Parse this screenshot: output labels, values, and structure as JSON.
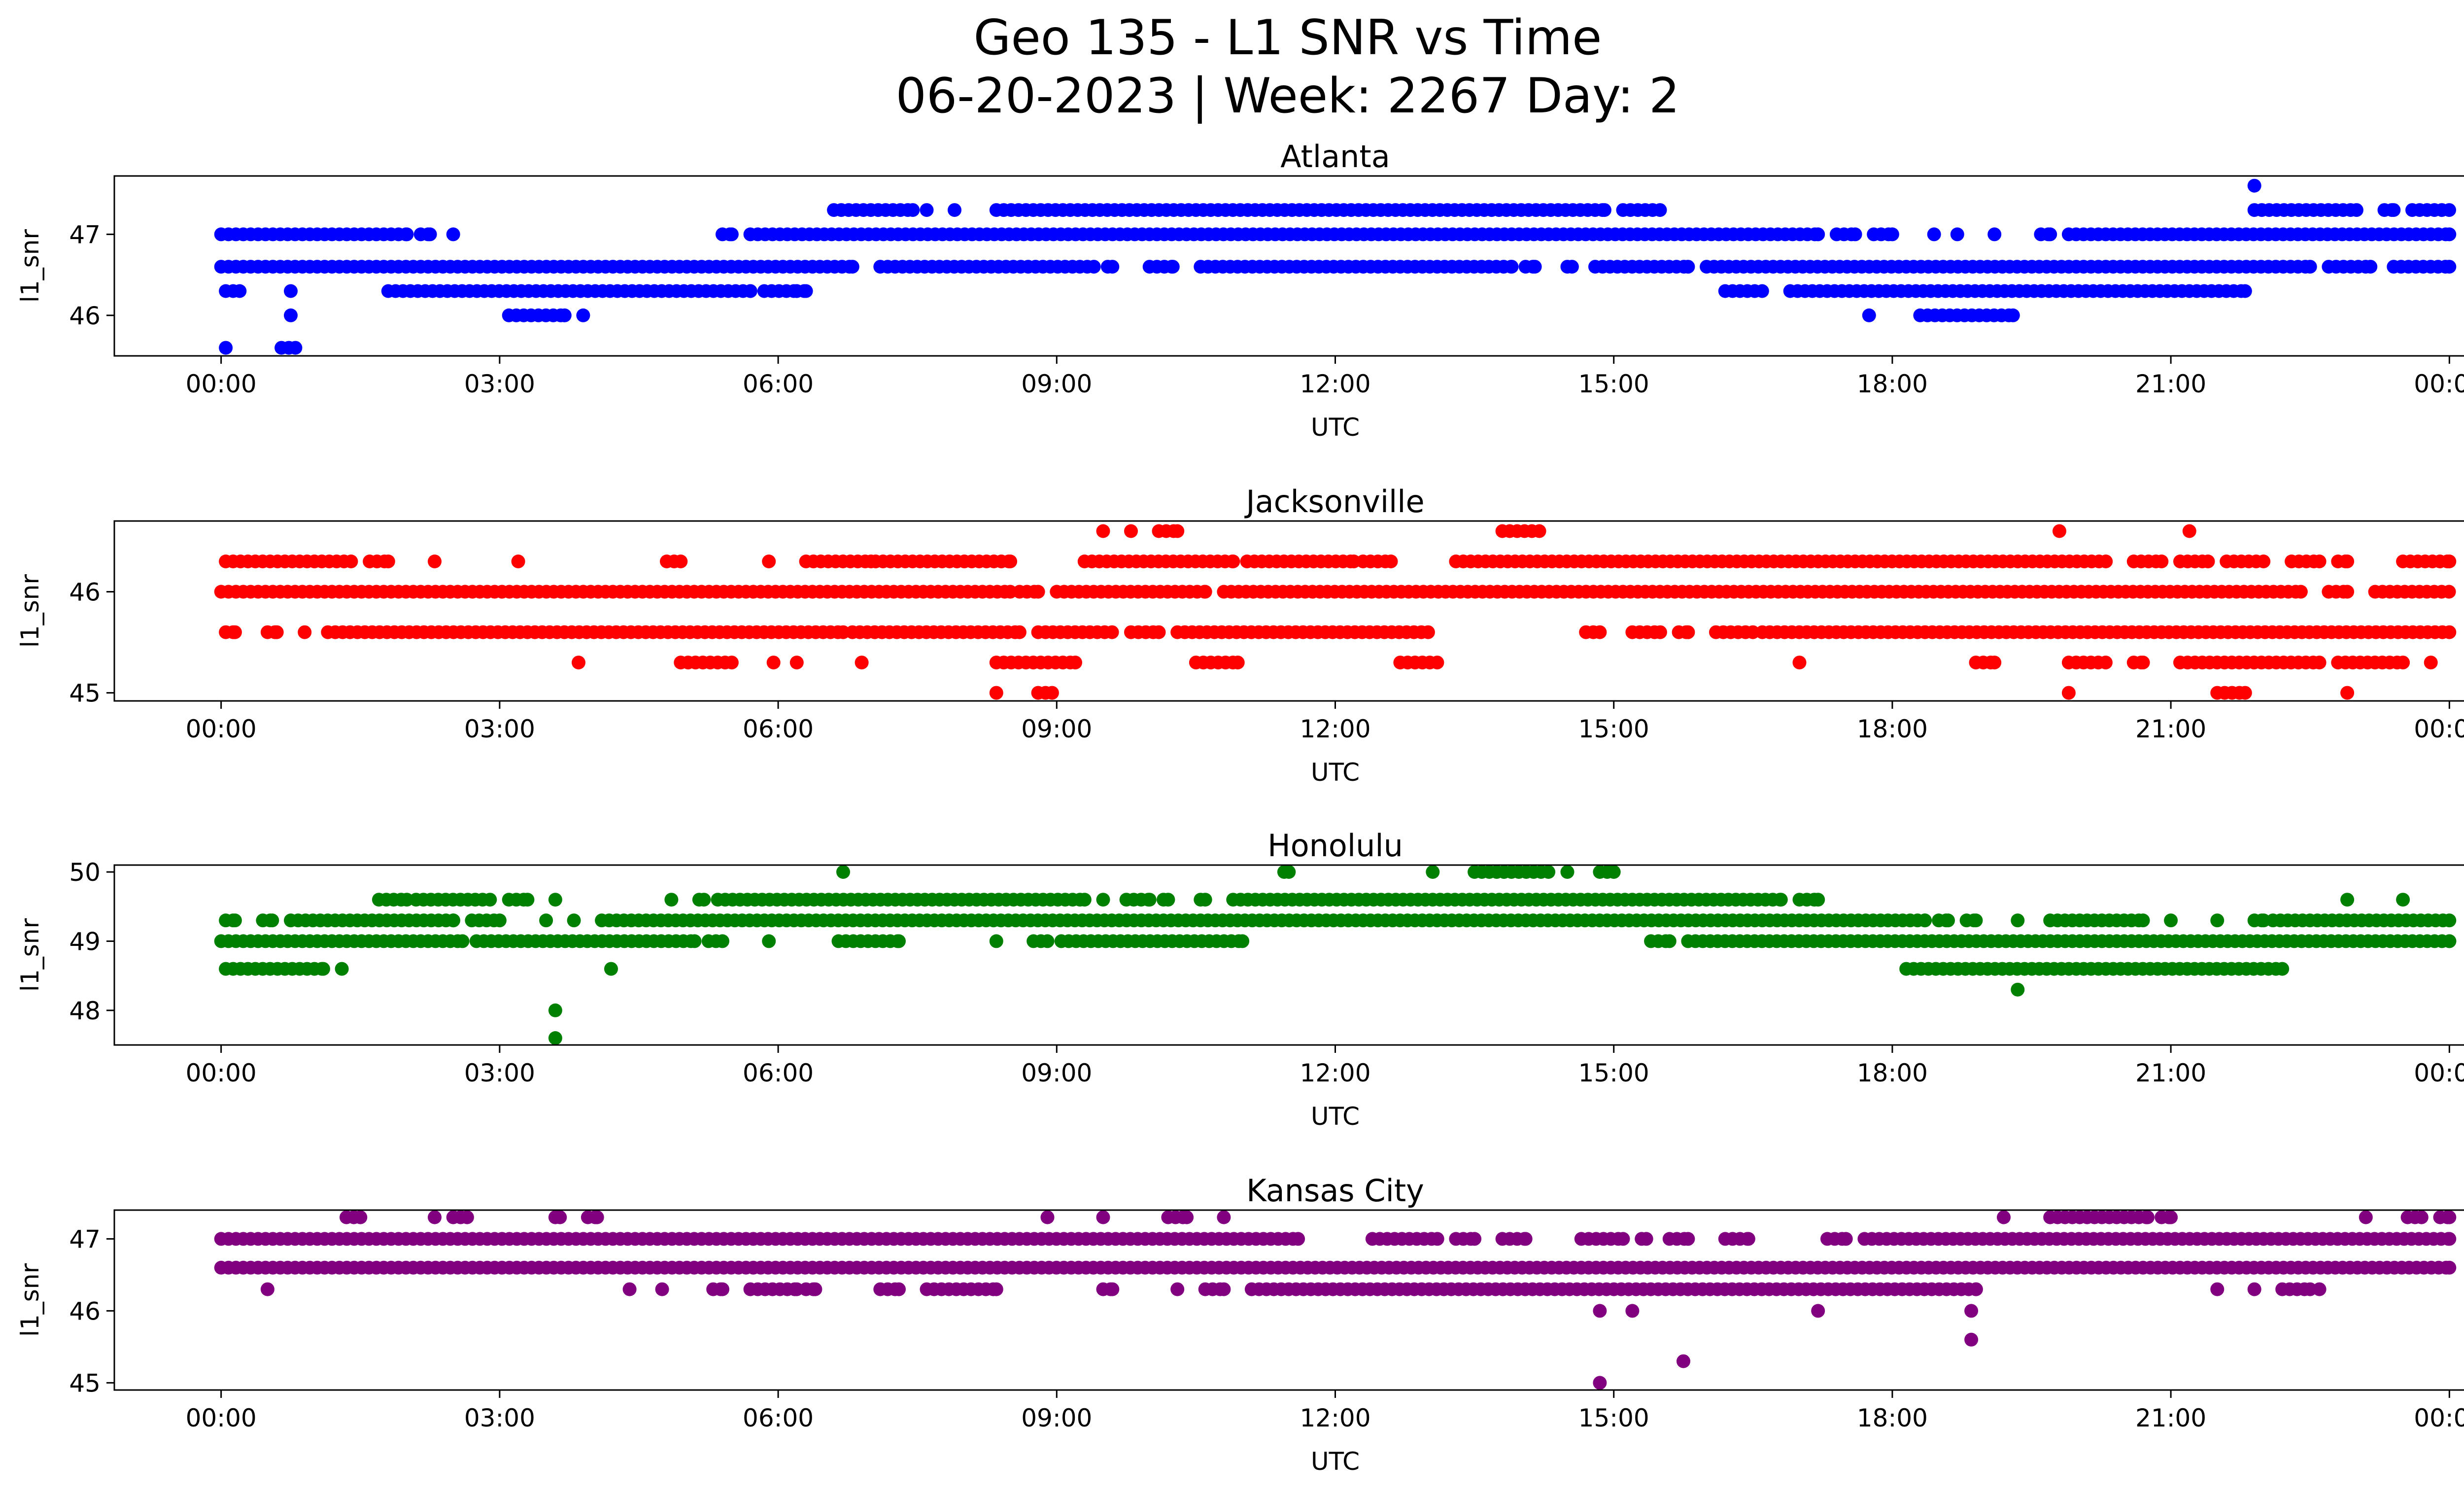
{
  "title": {
    "line1": "Geo 135 - L1 SNR vs Time",
    "line2": "06-20-2023 | Week: 2267 Day: 2"
  },
  "chart_data": [
    {
      "type": "scatter",
      "title": "Atlanta",
      "xlabel": "UTC",
      "ylabel": "l1_snr",
      "color": "#0000ff",
      "x_ticks": [
        "00:00",
        "03:00",
        "06:00",
        "09:00",
        "12:00",
        "15:00",
        "18:00",
        "21:00",
        "00:00"
      ],
      "xlim_hours": [
        -1.15,
        25.15
      ],
      "y_ticks": [
        46,
        47
      ],
      "ylim": [
        45.5,
        47.72
      ],
      "grid": false,
      "series": [
        {
          "level": 47.6,
          "segments": [
            [
              21.9,
              21.9
            ]
          ]
        },
        {
          "level": 47.3,
          "segments": [
            [
              6.6,
              7.45
            ],
            [
              7.6,
              7.6
            ],
            [
              7.9,
              7.9
            ],
            [
              8.35,
              14.9
            ],
            [
              15.1,
              15.5
            ],
            [
              21.9,
              23.0
            ],
            [
              23.3,
              23.4
            ],
            [
              23.6,
              24.0
            ]
          ]
        },
        {
          "level": 47.0,
          "segments": [
            [
              0.0,
              2.0
            ],
            [
              2.15,
              2.25
            ],
            [
              2.5,
              2.5
            ],
            [
              5.4,
              5.5
            ],
            [
              5.7,
              17.2
            ],
            [
              17.4,
              17.6
            ],
            [
              17.8,
              18.0
            ],
            [
              18.45,
              18.45
            ],
            [
              18.7,
              18.7
            ],
            [
              19.1,
              19.1
            ],
            [
              19.6,
              19.7
            ],
            [
              19.9,
              24.0
            ]
          ]
        },
        {
          "level": 46.6,
          "segments": [
            [
              0.0,
              6.8
            ],
            [
              7.1,
              9.4
            ],
            [
              9.55,
              9.6
            ],
            [
              10.0,
              10.25
            ],
            [
              10.55,
              13.9
            ],
            [
              14.05,
              14.15
            ],
            [
              14.5,
              14.55
            ],
            [
              14.8,
              15.8
            ],
            [
              16.0,
              22.5
            ],
            [
              22.7,
              23.15
            ],
            [
              23.4,
              24.0
            ]
          ]
        },
        {
          "level": 46.3,
          "segments": [
            [
              0.05,
              0.2
            ],
            [
              0.75,
              0.75
            ],
            [
              1.8,
              5.7
            ],
            [
              5.85,
              6.2
            ],
            [
              6.2,
              6.3
            ],
            [
              16.2,
              16.6
            ],
            [
              16.9,
              21.8
            ]
          ]
        },
        {
          "level": 46.0,
          "segments": [
            [
              0.75,
              0.75
            ],
            [
              3.1,
              3.7
            ],
            [
              3.9,
              3.9
            ],
            [
              17.75,
              17.75
            ],
            [
              18.3,
              19.3
            ]
          ]
        },
        {
          "level": 45.6,
          "segments": [
            [
              0.05,
              0.05
            ],
            [
              0.65,
              0.8
            ]
          ]
        }
      ]
    },
    {
      "type": "scatter",
      "title": "Jacksonville",
      "xlabel": "UTC",
      "ylabel": "l1_snr",
      "color": "#ff0000",
      "x_ticks": [
        "00:00",
        "03:00",
        "06:00",
        "09:00",
        "12:00",
        "15:00",
        "18:00",
        "21:00",
        "00:00"
      ],
      "xlim_hours": [
        -1.15,
        25.15
      ],
      "y_ticks": [
        45,
        46
      ],
      "ylim": [
        44.92,
        46.7
      ],
      "grid": false,
      "series": [
        {
          "level": 46.6,
          "segments": [
            [
              9.5,
              9.5
            ],
            [
              9.8,
              9.8
            ],
            [
              10.1,
              10.3
            ],
            [
              13.8,
              14.2
            ],
            [
              19.8,
              19.8
            ],
            [
              21.2,
              21.2
            ]
          ]
        },
        {
          "level": 46.3,
          "segments": [
            [
              0.05,
              1.4
            ],
            [
              1.6,
              1.8
            ],
            [
              2.3,
              2.3
            ],
            [
              3.2,
              3.2
            ],
            [
              4.8,
              4.95
            ],
            [
              5.9,
              5.9
            ],
            [
              6.3,
              7.0
            ],
            [
              7.05,
              8.5
            ],
            [
              9.3,
              10.9
            ],
            [
              11.05,
              12.2
            ],
            [
              12.3,
              12.6
            ],
            [
              13.3,
              20.3
            ],
            [
              20.6,
              20.9
            ],
            [
              21.1,
              21.4
            ],
            [
              21.6,
              22.0
            ],
            [
              22.3,
              22.6
            ],
            [
              22.8,
              22.9
            ],
            [
              23.5,
              24.0
            ]
          ]
        },
        {
          "level": 46.0,
          "segments": [
            [
              0.0,
              8.5
            ],
            [
              8.6,
              8.8
            ],
            [
              9.0,
              10.6
            ],
            [
              10.8,
              22.4
            ],
            [
              22.7,
              22.9
            ],
            [
              23.2,
              24.0
            ]
          ]
        },
        {
          "level": 45.6,
          "segments": [
            [
              0.05,
              0.15
            ],
            [
              0.5,
              0.6
            ],
            [
              0.9,
              0.9
            ],
            [
              1.15,
              6.7
            ],
            [
              6.8,
              8.6
            ],
            [
              8.8,
              9.6
            ],
            [
              9.8,
              10.1
            ],
            [
              10.3,
              13.0
            ],
            [
              14.7,
              14.85
            ],
            [
              15.2,
              15.5
            ],
            [
              15.7,
              15.8
            ],
            [
              16.1,
              16.5
            ],
            [
              16.6,
              24.0
            ]
          ]
        },
        {
          "level": 45.3,
          "segments": [
            [
              3.85,
              3.85
            ],
            [
              4.95,
              5.5
            ],
            [
              5.95,
              5.95
            ],
            [
              6.2,
              6.2
            ],
            [
              6.9,
              6.9
            ],
            [
              8.35,
              9.2
            ],
            [
              10.5,
              10.95
            ],
            [
              12.7,
              13.1
            ],
            [
              17.0,
              17.0
            ],
            [
              18.9,
              19.1
            ],
            [
              19.9,
              20.3
            ],
            [
              20.6,
              20.7
            ],
            [
              21.1,
              22.6
            ],
            [
              22.8,
              23.5
            ],
            [
              23.8,
              23.8
            ]
          ]
        },
        {
          "level": 45.0,
          "segments": [
            [
              8.35,
              8.35
            ],
            [
              8.8,
              8.95
            ],
            [
              19.9,
              19.9
            ],
            [
              21.5,
              21.8
            ],
            [
              22.9,
              22.9
            ]
          ]
        }
      ]
    },
    {
      "type": "scatter",
      "title": "Honolulu",
      "xlabel": "UTC",
      "ylabel": "l1_snr",
      "color": "#008000",
      "x_ticks": [
        "00:00",
        "03:00",
        "06:00",
        "09:00",
        "12:00",
        "15:00",
        "18:00",
        "21:00",
        "00:00"
      ],
      "xlim_hours": [
        -1.15,
        25.15
      ],
      "y_ticks": [
        48,
        49,
        50
      ],
      "ylim": [
        47.5,
        50.1
      ],
      "grid": false,
      "series": [
        {
          "level": 50.0,
          "segments": [
            [
              6.7,
              6.7
            ],
            [
              11.45,
              11.5
            ],
            [
              13.05,
              13.05
            ],
            [
              13.5,
              14.3
            ],
            [
              14.5,
              14.5
            ],
            [
              14.85,
              15.0
            ]
          ]
        },
        {
          "level": 49.6,
          "segments": [
            [
              1.7,
              2.0
            ],
            [
              2.1,
              2.9
            ],
            [
              3.1,
              3.3
            ],
            [
              3.6,
              3.6
            ],
            [
              4.85,
              4.85
            ],
            [
              5.15,
              5.2
            ],
            [
              5.35,
              9.3
            ],
            [
              9.5,
              9.5
            ],
            [
              9.75,
              10.0
            ],
            [
              10.15,
              10.2
            ],
            [
              10.55,
              10.6
            ],
            [
              10.9,
              16.8
            ],
            [
              17.0,
              17.2
            ],
            [
              22.9,
              22.9
            ],
            [
              23.5,
              23.5
            ]
          ]
        },
        {
          "level": 49.3,
          "segments": [
            [
              0.05,
              0.15
            ],
            [
              0.45,
              0.55
            ],
            [
              0.75,
              2.5
            ],
            [
              2.7,
              3.0
            ],
            [
              3.5,
              3.5
            ],
            [
              3.8,
              3.8
            ],
            [
              4.1,
              18.35
            ],
            [
              18.5,
              18.6
            ],
            [
              18.8,
              18.9
            ],
            [
              19.35,
              19.35
            ],
            [
              19.7,
              20.7
            ],
            [
              21.0,
              21.0
            ],
            [
              21.5,
              21.5
            ],
            [
              21.9,
              22.0
            ],
            [
              22.1,
              24.0
            ]
          ]
        },
        {
          "level": 49.0,
          "segments": [
            [
              0.0,
              2.6
            ],
            [
              2.75,
              5.1
            ],
            [
              5.25,
              5.4
            ],
            [
              5.9,
              5.9
            ],
            [
              6.65,
              7.3
            ],
            [
              8.35,
              8.35
            ],
            [
              8.75,
              8.9
            ],
            [
              9.05,
              11.0
            ],
            [
              15.4,
              15.6
            ],
            [
              15.8,
              24.0
            ]
          ]
        },
        {
          "level": 48.6,
          "segments": [
            [
              0.05,
              1.1
            ],
            [
              1.3,
              1.3
            ],
            [
              4.2,
              4.2
            ],
            [
              18.15,
              22.2
            ]
          ]
        },
        {
          "level": 48.3,
          "segments": [
            [
              19.35,
              19.35
            ]
          ]
        },
        {
          "level": 48.0,
          "segments": [
            [
              3.6,
              3.6
            ]
          ]
        },
        {
          "level": 47.6,
          "segments": [
            [
              3.6,
              3.6
            ]
          ]
        }
      ]
    },
    {
      "type": "scatter",
      "title": "Kansas City",
      "xlabel": "UTC",
      "ylabel": "l1_snr",
      "color": "#800080",
      "x_ticks": [
        "00:00",
        "03:00",
        "06:00",
        "09:00",
        "12:00",
        "15:00",
        "18:00",
        "21:00",
        "00:00"
      ],
      "xlim_hours": [
        -1.15,
        25.15
      ],
      "y_ticks": [
        45,
        46,
        47
      ],
      "ylim": [
        44.9,
        47.4
      ],
      "grid": false,
      "series": [
        {
          "level": 47.3,
          "segments": [
            [
              1.35,
              1.5
            ],
            [
              2.3,
              2.3
            ],
            [
              2.5,
              2.65
            ],
            [
              3.6,
              3.65
            ],
            [
              3.95,
              4.05
            ],
            [
              8.9,
              8.9
            ],
            [
              9.5,
              9.5
            ],
            [
              10.2,
              10.4
            ],
            [
              10.8,
              10.8
            ],
            [
              19.2,
              19.2
            ],
            [
              19.7,
              20.75
            ],
            [
              20.9,
              21.0
            ],
            [
              23.1,
              23.1
            ],
            [
              23.55,
              23.7
            ],
            [
              23.9,
              24.0
            ]
          ]
        },
        {
          "level": 47.0,
          "segments": [
            [
              0.0,
              11.6
            ],
            [
              12.4,
              13.1
            ],
            [
              13.3,
              13.5
            ],
            [
              13.8,
              14.05
            ],
            [
              14.65,
              15.1
            ],
            [
              15.3,
              15.35
            ],
            [
              15.6,
              15.8
            ],
            [
              16.2,
              16.45
            ],
            [
              17.3,
              17.5
            ],
            [
              17.7,
              24.0
            ]
          ]
        },
        {
          "level": 46.6,
          "segments": [
            [
              0.0,
              24.0
            ]
          ]
        },
        {
          "level": 46.3,
          "segments": [
            [
              0.5,
              0.5
            ],
            [
              4.4,
              4.4
            ],
            [
              4.75,
              4.75
            ],
            [
              5.3,
              5.4
            ],
            [
              5.7,
              6.2
            ],
            [
              6.3,
              6.4
            ],
            [
              7.1,
              7.3
            ],
            [
              7.6,
              8.35
            ],
            [
              9.5,
              9.6
            ],
            [
              10.3,
              10.3
            ],
            [
              10.6,
              10.8
            ],
            [
              11.1,
              18.9
            ],
            [
              21.5,
              21.5
            ],
            [
              21.9,
              21.9
            ],
            [
              22.2,
              22.5
            ],
            [
              22.6,
              22.6
            ]
          ]
        },
        {
          "level": 46.0,
          "segments": [
            [
              14.85,
              14.85
            ],
            [
              15.2,
              15.2
            ],
            [
              17.2,
              17.2
            ],
            [
              18.85,
              18.85
            ]
          ]
        },
        {
          "level": 45.6,
          "segments": [
            [
              18.85,
              18.85
            ]
          ]
        },
        {
          "level": 45.3,
          "segments": [
            [
              15.75,
              15.75
            ]
          ]
        },
        {
          "level": 45.0,
          "segments": [
            [
              14.85,
              14.85
            ]
          ]
        }
      ]
    }
  ]
}
